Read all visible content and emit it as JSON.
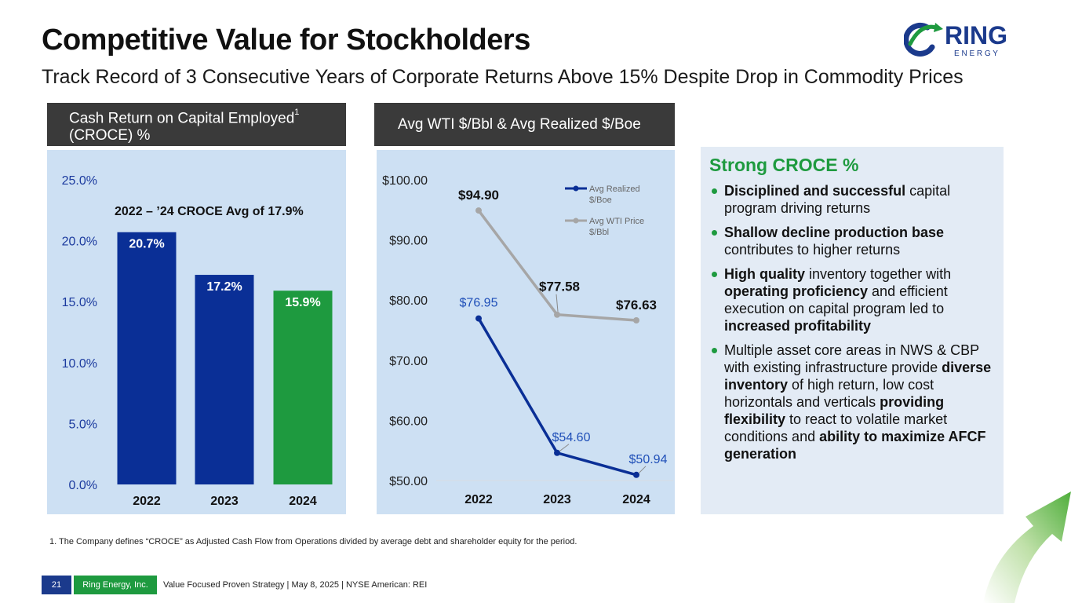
{
  "title": "Competitive Value for Stockholders",
  "subtitle": "Track Record of 3 Consecutive Years of Corporate Returns Above 15% Despite Drop in Commodity Prices",
  "logo": {
    "word": "RING",
    "sub": "E N E R G Y"
  },
  "chart1_header": {
    "text": "Cash Return on Capital Employed",
    "sup": "1",
    "line2": "(CROCE) %"
  },
  "chart2_header": "Avg WTI $/Bbl & Avg Realized $/Boe",
  "colors": {
    "blue": "#0a2f96",
    "green": "#1e9a3f",
    "gray": "#a6a6a6",
    "panel": "#cde0f3"
  },
  "chart_data": [
    {
      "type": "bar",
      "categories": [
        "2022",
        "2023",
        "2024"
      ],
      "values": [
        20.7,
        17.2,
        15.9
      ],
      "value_labels": [
        "20.7%",
        "17.2%",
        "15.9%"
      ],
      "bar_colors": [
        "#0a2f96",
        "#0a2f96",
        "#1e9a3f"
      ],
      "yticks": [
        "0.0%",
        "5.0%",
        "10.0%",
        "15.0%",
        "20.0%",
        "25.0%"
      ],
      "ylim": [
        0,
        25
      ],
      "annotation": "2022 – ’24 CROCE Avg of 17.9%",
      "grid": false
    },
    {
      "type": "line",
      "categories": [
        "2022",
        "2023",
        "2024"
      ],
      "series": [
        {
          "name": "Avg Realized $/Boe",
          "values": [
            76.95,
            54.6,
            50.94
          ],
          "labels": [
            "$76.95",
            "$54.60",
            "$50.94"
          ],
          "color": "#0a2f96"
        },
        {
          "name": "Avg WTI Price $/Bbl",
          "values": [
            94.9,
            77.58,
            76.63
          ],
          "labels": [
            "$94.90",
            "$77.58",
            "$76.63"
          ],
          "color": "#a6a6a6"
        }
      ],
      "yticks": [
        "$50.00",
        "$60.00",
        "$70.00",
        "$80.00",
        "$90.00",
        "$100.00"
      ],
      "ylim": [
        50,
        100
      ],
      "legend_position": "top-right",
      "grid": false
    }
  ],
  "side_panel": {
    "title": "Strong CROCE %",
    "bullets": [
      [
        {
          "b": "Disciplined and successful"
        },
        {
          "t": " capital program driving returns"
        }
      ],
      [
        {
          "b": "Shallow decline production base"
        },
        {
          "t": " contributes to higher returns"
        }
      ],
      [
        {
          "b": "High quality"
        },
        {
          "t": " inventory together with "
        },
        {
          "b": "operating proficiency"
        },
        {
          "t": " and efficient execution on capital program led to "
        },
        {
          "b": "increased profitability"
        }
      ],
      [
        {
          "t": "Multiple asset core areas in NWS & CBP with existing infrastructure provide "
        },
        {
          "b": "diverse inventory"
        },
        {
          "t": " of high return, low cost horizontals and verticals "
        },
        {
          "b": "providing flexibility"
        },
        {
          "t": " to react to volatile market conditions and "
        },
        {
          "b": "ability to maximize AFCF generation"
        }
      ]
    ]
  },
  "footnote": "1.   The Company defines “CROCE” as Adjusted Cash Flow from Operations divided by average debt and shareholder equity for the period.",
  "footer": {
    "page": "21",
    "company": "Ring Energy, Inc.",
    "text": "Value Focused Proven Strategy  | May 8, 2025 |  NYSE American: REI"
  }
}
